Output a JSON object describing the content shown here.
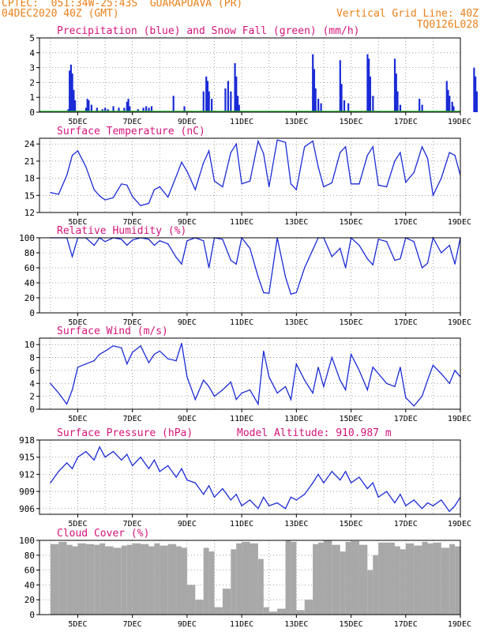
{
  "header": {
    "line1": "CPTEC:  051:34W-25:43S  GUARAPUAVA (PR)",
    "line2": "04DEC2020 40Z (GMT)",
    "right1": "Vertical Grid Line: 40Z",
    "right2": "TQ0126L028"
  },
  "x_ticks": [
    "5DEC",
    "7DEC",
    "9DEC",
    "11DEC",
    "13DEC",
    "15DEC",
    "17DEC",
    "19DEC"
  ],
  "colors": {
    "line": "#1a2bd6",
    "title": "#d6147a",
    "header": "#e8811a",
    "snow": "#2aa82a",
    "cloud": "#a8a8a8"
  },
  "chart_data": [
    {
      "type": "bar",
      "title": "Precipitation (blue) and Snow Fall (green) (mm/h)",
      "ylim": [
        0,
        5
      ],
      "yticks": [
        "0",
        "1",
        "2",
        "3",
        "4",
        "5"
      ],
      "series": [
        {
          "name": "Precipitation",
          "values": [
            [
              4.65,
              0.2
            ],
            [
              4.7,
              2.8
            ],
            [
              4.75,
              3.2
            ],
            [
              4.8,
              2.6
            ],
            [
              4.85,
              1.5
            ],
            [
              4.9,
              0.8
            ],
            [
              5.3,
              0.3
            ],
            [
              5.35,
              0.9
            ],
            [
              5.4,
              0.8
            ],
            [
              5.5,
              0.5
            ],
            [
              5.7,
              0.3
            ],
            [
              5.9,
              0.2
            ],
            [
              6.0,
              0.3
            ],
            [
              6.1,
              0.2
            ],
            [
              6.3,
              0.4
            ],
            [
              6.5,
              0.3
            ],
            [
              6.7,
              0.3
            ],
            [
              6.8,
              0.7
            ],
            [
              6.85,
              0.9
            ],
            [
              6.9,
              0.4
            ],
            [
              7.2,
              0.2
            ],
            [
              7.4,
              0.3
            ],
            [
              7.5,
              0.4
            ],
            [
              7.6,
              0.3
            ],
            [
              7.7,
              0.4
            ],
            [
              8.5,
              1.1
            ],
            [
              8.9,
              0.4
            ],
            [
              9.6,
              1.4
            ],
            [
              9.7,
              2.4
            ],
            [
              9.75,
              2.1
            ],
            [
              9.8,
              1.4
            ],
            [
              9.9,
              0.9
            ],
            [
              10.4,
              1.6
            ],
            [
              10.5,
              2.1
            ],
            [
              10.6,
              1.4
            ],
            [
              10.75,
              3.3
            ],
            [
              10.8,
              2.4
            ],
            [
              10.85,
              1.1
            ],
            [
              10.9,
              0.5
            ],
            [
              13.6,
              3.9
            ],
            [
              13.65,
              2.9
            ],
            [
              13.7,
              1.6
            ],
            [
              13.8,
              0.9
            ],
            [
              13.9,
              0.6
            ],
            [
              14.6,
              3.5
            ],
            [
              14.65,
              1.9
            ],
            [
              14.75,
              0.8
            ],
            [
              14.9,
              0.6
            ],
            [
              15.6,
              3.9
            ],
            [
              15.65,
              3.6
            ],
            [
              15.7,
              2.4
            ],
            [
              15.8,
              1.1
            ],
            [
              16.6,
              3.6
            ],
            [
              16.65,
              2.6
            ],
            [
              16.7,
              1.4
            ],
            [
              16.8,
              0.5
            ],
            [
              17.5,
              0.9
            ],
            [
              17.6,
              0.5
            ],
            [
              18.5,
              2.1
            ],
            [
              18.55,
              1.5
            ],
            [
              18.6,
              1.1
            ],
            [
              18.7,
              0.7
            ],
            [
              18.75,
              0.4
            ],
            [
              19.5,
              3.0
            ],
            [
              19.55,
              2.4
            ],
            [
              19.6,
              1.4
            ]
          ]
        },
        {
          "name": "Snow Fall",
          "values": []
        }
      ]
    },
    {
      "type": "line",
      "title": "Surface Temperature (nC)",
      "ylim": [
        12,
        25
      ],
      "yticks": [
        "12",
        "15",
        "18",
        "21",
        "24"
      ],
      "x": [
        4.0,
        4.3,
        4.6,
        4.8,
        5.0,
        5.3,
        5.6,
        5.8,
        6.0,
        6.3,
        6.6,
        6.8,
        7.0,
        7.3,
        7.6,
        7.8,
        8.0,
        8.3,
        8.6,
        8.8,
        9.0,
        9.3,
        9.6,
        9.8,
        10.0,
        10.3,
        10.6,
        10.8,
        11.0,
        11.3,
        11.6,
        11.8,
        12.0,
        12.3,
        12.6,
        12.8,
        13.0,
        13.3,
        13.6,
        13.8,
        14.0,
        14.3,
        14.6,
        14.8,
        15.0,
        15.3,
        15.6,
        15.8,
        16.0,
        16.3,
        16.6,
        16.8,
        17.0,
        17.3,
        17.6,
        17.8,
        18.0,
        18.3,
        18.6,
        18.8,
        19.0
      ],
      "y": [
        15.5,
        15.2,
        18.5,
        22.0,
        22.8,
        20.0,
        16.0,
        14.9,
        14.2,
        14.6,
        17.0,
        16.8,
        14.8,
        13.2,
        13.6,
        16.0,
        16.5,
        14.7,
        18.3,
        20.8,
        19.2,
        16.0,
        20.7,
        22.8,
        17.5,
        16.5,
        22.5,
        24.0,
        17.0,
        17.5,
        24.5,
        22.3,
        16.5,
        24.7,
        24.3,
        17.0,
        16.0,
        23.5,
        24.5,
        20.0,
        16.5,
        17.2,
        22.5,
        23.5,
        17.0,
        17.0,
        22.0,
        23.5,
        16.8,
        16.5,
        21.0,
        22.5,
        17.3,
        19.0,
        23.5,
        21.5,
        15.0,
        18.0,
        22.5,
        22.0,
        18.5
      ]
    },
    {
      "type": "line",
      "title": "Relative Humidity (%)",
      "ylim": [
        0,
        100
      ],
      "yticks": [
        "0",
        "20",
        "40",
        "60",
        "80",
        "100"
      ],
      "x": [
        4.0,
        4.3,
        4.6,
        4.8,
        5.0,
        5.3,
        5.6,
        5.8,
        6.0,
        6.3,
        6.6,
        6.8,
        7.0,
        7.3,
        7.6,
        7.8,
        8.0,
        8.3,
        8.6,
        8.8,
        9.0,
        9.3,
        9.6,
        9.8,
        10.0,
        10.3,
        10.6,
        10.8,
        11.0,
        11.3,
        11.6,
        11.8,
        12.0,
        12.3,
        12.6,
        12.8,
        13.0,
        13.3,
        13.6,
        13.8,
        14.0,
        14.3,
        14.6,
        14.8,
        15.0,
        15.3,
        15.6,
        15.8,
        16.0,
        16.3,
        16.6,
        16.8,
        17.0,
        17.3,
        17.6,
        17.8,
        18.0,
        18.3,
        18.6,
        18.8,
        19.0
      ],
      "y": [
        100,
        100,
        100,
        75,
        100,
        100,
        90,
        100,
        95,
        100,
        98,
        90,
        97,
        100,
        98,
        90,
        96,
        92,
        74,
        65,
        96,
        100,
        96,
        60,
        100,
        98,
        70,
        65,
        100,
        86,
        48,
        27,
        26,
        100,
        48,
        25,
        27,
        60,
        84,
        100,
        100,
        75,
        86,
        60,
        100,
        90,
        72,
        64,
        98,
        95,
        70,
        72,
        100,
        95,
        60,
        66,
        100,
        80,
        90,
        65,
        100
      ]
    },
    {
      "type": "line",
      "title": "Surface Wind (m/s)",
      "ylim": [
        0,
        11
      ],
      "yticks": [
        "0",
        "2",
        "4",
        "6",
        "8",
        "10"
      ],
      "x": [
        4.0,
        4.3,
        4.6,
        4.8,
        5.0,
        5.3,
        5.6,
        5.8,
        6.0,
        6.3,
        6.6,
        6.8,
        7.0,
        7.3,
        7.6,
        7.8,
        8.0,
        8.3,
        8.6,
        8.8,
        9.0,
        9.3,
        9.6,
        9.8,
        10.0,
        10.3,
        10.6,
        10.8,
        11.0,
        11.3,
        11.6,
        11.8,
        12.0,
        12.3,
        12.6,
        12.8,
        13.0,
        13.3,
        13.6,
        13.8,
        14.0,
        14.3,
        14.6,
        14.8,
        15.0,
        15.3,
        15.6,
        15.8,
        16.0,
        16.3,
        16.6,
        16.8,
        17.0,
        17.3,
        17.6,
        17.8,
        18.0,
        18.3,
        18.6,
        18.8,
        19.0
      ],
      "y": [
        4.0,
        2.5,
        0.8,
        3.0,
        6.5,
        7.0,
        7.5,
        8.5,
        9.0,
        9.8,
        9.5,
        7.0,
        8.8,
        9.8,
        7.2,
        8.5,
        9.0,
        7.8,
        7.5,
        10.2,
        5.0,
        1.5,
        4.5,
        3.5,
        2.0,
        3.0,
        4.2,
        1.5,
        2.5,
        3.0,
        0.8,
        9.0,
        5.0,
        2.5,
        3.5,
        1.5,
        7.0,
        4.5,
        2.5,
        6.5,
        3.5,
        8.0,
        4.5,
        3.0,
        8.5,
        6.0,
        3.0,
        6.5,
        5.5,
        4.0,
        3.5,
        6.5,
        1.8,
        0.5,
        2.0,
        4.5,
        6.8,
        5.5,
        4.0,
        6.0,
        5.0
      ]
    },
    {
      "type": "line",
      "title": "Surface Pressure (hPa)",
      "subtitle": "Model Altitude: 910.987 m",
      "ylim": [
        905,
        918
      ],
      "yticks": [
        "906",
        "909",
        "912",
        "915",
        "918"
      ],
      "x": [
        4.0,
        4.3,
        4.6,
        4.8,
        5.0,
        5.3,
        5.6,
        5.8,
        6.0,
        6.3,
        6.6,
        6.8,
        7.0,
        7.3,
        7.6,
        7.8,
        8.0,
        8.3,
        8.6,
        8.8,
        9.0,
        9.3,
        9.6,
        9.8,
        10.0,
        10.3,
        10.6,
        10.8,
        11.0,
        11.3,
        11.6,
        11.8,
        12.0,
        12.3,
        12.6,
        12.8,
        13.0,
        13.3,
        13.6,
        13.8,
        14.0,
        14.3,
        14.6,
        14.8,
        15.0,
        15.3,
        15.6,
        15.8,
        16.0,
        16.3,
        16.6,
        16.8,
        17.0,
        17.3,
        17.6,
        17.8,
        18.0,
        18.3,
        18.6,
        18.8,
        19.0
      ],
      "y": [
        910.5,
        912.5,
        914.0,
        913.0,
        915.0,
        916.0,
        914.5,
        916.8,
        915.0,
        916.0,
        914.5,
        915.5,
        913.5,
        915.0,
        913.0,
        914.5,
        912.5,
        913.5,
        911.5,
        913.0,
        911.0,
        910.5,
        908.5,
        910.0,
        908.0,
        909.5,
        907.5,
        908.5,
        906.5,
        907.5,
        906.0,
        908.0,
        906.5,
        907.0,
        906.0,
        908.0,
        907.5,
        908.5,
        910.5,
        912.0,
        910.5,
        912.5,
        911.0,
        912.5,
        910.5,
        911.5,
        909.5,
        910.5,
        908.0,
        909.0,
        907.0,
        908.5,
        906.5,
        907.5,
        906.0,
        907.0,
        906.5,
        907.5,
        905.5,
        906.5,
        908.0
      ]
    },
    {
      "type": "bar",
      "title": "Cloud Cover (%)",
      "ylim": [
        0,
        100
      ],
      "yticks": [
        "0",
        "20",
        "40",
        "60",
        "80",
        "100"
      ],
      "x": [
        4.0,
        4.3,
        4.6,
        4.8,
        5.0,
        5.3,
        5.6,
        5.8,
        6.0,
        6.3,
        6.6,
        6.8,
        7.0,
        7.3,
        7.6,
        7.8,
        8.0,
        8.3,
        8.6,
        8.8,
        9.0,
        9.3,
        9.6,
        9.8,
        10.0,
        10.3,
        10.6,
        10.8,
        11.0,
        11.3,
        11.6,
        11.8,
        12.0,
        12.3,
        12.6,
        12.8,
        13.0,
        13.3,
        13.6,
        13.8,
        14.0,
        14.3,
        14.6,
        14.8,
        15.0,
        15.3,
        15.6,
        15.8,
        16.0,
        16.3,
        16.6,
        16.8,
        17.0,
        17.3,
        17.6,
        17.8,
        18.0,
        18.3,
        18.6,
        18.8,
        19.0
      ],
      "values": [
        95,
        98,
        94,
        92,
        96,
        95,
        94,
        96,
        92,
        90,
        93,
        94,
        96,
        95,
        92,
        96,
        93,
        95,
        92,
        90,
        40,
        20,
        90,
        85,
        10,
        35,
        88,
        96,
        98,
        96,
        75,
        10,
        4,
        8,
        100,
        98,
        6,
        20,
        95,
        97,
        100,
        94,
        85,
        98,
        99,
        94,
        60,
        80,
        97,
        97,
        92,
        88,
        96,
        93,
        98,
        96,
        97,
        90,
        95,
        92,
        97
      ]
    }
  ]
}
